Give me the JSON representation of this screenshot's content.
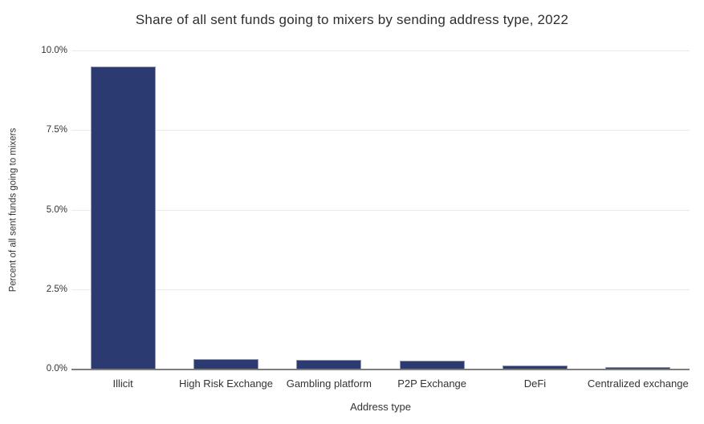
{
  "title": "Share of all sent funds going to mixers by sending address type, 2022",
  "chart_data": {
    "type": "bar",
    "title": "Share of all sent funds going to mixers by sending address type, 2022",
    "categories": [
      "Illicit",
      "High Risk Exchange",
      "Gambling platform",
      "P2P Exchange",
      "DeFi",
      "Centralized exchange"
    ],
    "values": [
      9.5,
      0.3,
      0.27,
      0.24,
      0.09,
      0.06
    ],
    "xlabel": "Address type",
    "ylabel": "Percent of all sent funds going to mixers",
    "ylim": [
      0,
      10
    ],
    "yticks": [
      0,
      2.5,
      5,
      7.5,
      10
    ],
    "ytick_labels": [
      "0.0%",
      "2.5%",
      "5.0%",
      "7.5%",
      "10.0%"
    ],
    "grid": "horizontal",
    "legend": "none"
  },
  "colors": {
    "bar": "#2b3b72",
    "bar_border": "#8f98b6",
    "gridline": "#e9e9e9",
    "axis_line": "#7d7d7d",
    "text": "#333333"
  }
}
